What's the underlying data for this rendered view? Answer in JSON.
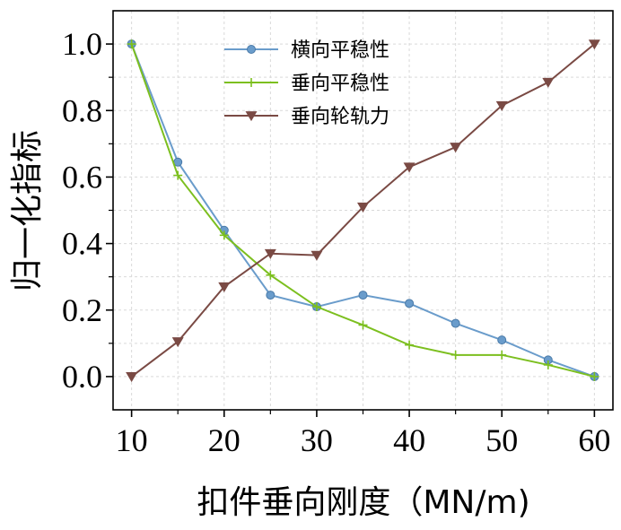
{
  "chart_data": {
    "type": "line",
    "title": "",
    "xlabel": "扣件垂向刚度（MN/m)",
    "ylabel": "归一化指标",
    "x": [
      10,
      15,
      20,
      25,
      30,
      35,
      40,
      45,
      50,
      55,
      60
    ],
    "xlim": [
      8,
      62
    ],
    "ylim": [
      -0.1,
      1.1
    ],
    "xticks": [
      10,
      20,
      30,
      40,
      50,
      60
    ],
    "xtick_labels": [
      "10",
      "20",
      "30",
      "40",
      "50",
      "60"
    ],
    "yticks": [
      0.0,
      0.2,
      0.4,
      0.6,
      0.8,
      1.0
    ],
    "ytick_labels": [
      "0.0",
      "0.2",
      "0.4",
      "0.6",
      "0.8",
      "1.0"
    ],
    "grid": true,
    "legend_position": "top-center",
    "series": [
      {
        "name": "横向平稳性",
        "color": "#6a9ccb",
        "marker": "circle",
        "values": [
          1.0,
          0.645,
          0.44,
          0.245,
          0.21,
          0.245,
          0.22,
          0.16,
          0.11,
          0.05,
          0.0
        ]
      },
      {
        "name": "垂向平稳性",
        "color": "#7cbf1f",
        "marker": "plus",
        "values": [
          1.0,
          0.605,
          0.425,
          0.305,
          0.21,
          0.155,
          0.095,
          0.065,
          0.065,
          0.035,
          0.0
        ]
      },
      {
        "name": "垂向轮轨力",
        "color": "#7a4a44",
        "marker": "triangle-down",
        "values": [
          0.0,
          0.105,
          0.27,
          0.37,
          0.365,
          0.51,
          0.63,
          0.69,
          0.815,
          0.885,
          1.0
        ]
      }
    ]
  }
}
